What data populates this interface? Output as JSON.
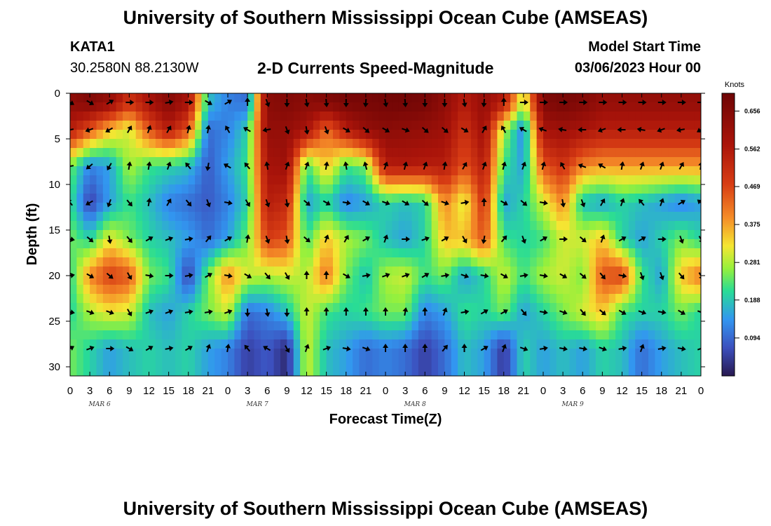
{
  "header": {
    "title": "University of Southern Mississippi Ocean Cube (AMSEAS)",
    "station_id": "KATA1",
    "coordinates": "30.2580N  88.2130W",
    "product": "2-D Currents Speed-Magnitude",
    "model_start_label": "Model Start Time",
    "model_start_value": "03/06/2023 Hour 00"
  },
  "footer": {
    "title": "University of Southern Mississippi Ocean Cube (AMSEAS)"
  },
  "colors": {
    "low": "#2a1e5c",
    "mid": "#3fe07a",
    "high": "#7a0b0b"
  },
  "chart_data": {
    "type": "heatmap",
    "title": "2-D Currents Speed-Magnitude",
    "xlabel": "Forecast Time(Z)",
    "ylabel": "Depth (ft)",
    "x_unit": "forecast hour",
    "x_range": [
      0,
      96
    ],
    "x_ticks": [
      "0",
      "3",
      "6",
      "9",
      "12",
      "15",
      "18",
      "21",
      "0",
      "3",
      "6",
      "9",
      "12",
      "15",
      "18",
      "21",
      "0",
      "3",
      "6",
      "9",
      "12",
      "15",
      "18",
      "21",
      "0",
      "3",
      "6",
      "9",
      "12",
      "15",
      "18",
      "21",
      "0"
    ],
    "date_labels": [
      "MAR 6",
      "MAR 7",
      "MAR 8",
      "MAR 9"
    ],
    "y_range": [
      0,
      31
    ],
    "y_ticks": [
      "0",
      "5",
      "10",
      "15",
      "20",
      "25",
      "30"
    ],
    "colorbar": {
      "title": "Knots",
      "range": [
        0,
        0.7
      ],
      "tick_values": [
        0.094,
        0.188,
        0.281,
        0.375,
        0.469,
        0.562,
        0.656
      ],
      "tick_labels": [
        "0.094",
        "0.188",
        "0.281",
        "0.375",
        "0.469",
        "0.562",
        "0.656"
      ]
    },
    "depth_levels_ft": [
      1,
      4,
      8,
      12,
      16,
      20,
      24,
      28
    ],
    "hours": [
      0,
      3,
      6,
      9,
      12,
      15,
      18,
      21,
      24,
      27,
      30,
      33,
      36,
      39,
      42,
      45,
      48,
      51,
      54,
      57,
      60,
      63,
      66,
      69,
      72,
      75,
      78,
      81,
      84,
      87,
      90,
      93,
      96
    ],
    "speed_knots": [
      [
        0.63,
        0.66,
        0.62,
        0.5,
        0.58,
        0.65,
        0.58,
        0.18,
        0.12,
        0.1,
        0.64,
        0.66,
        0.64,
        0.66,
        0.68,
        0.68,
        0.69,
        0.69,
        0.68,
        0.63,
        0.55,
        0.62,
        0.55,
        0.28,
        0.66,
        0.68,
        0.66,
        0.62,
        0.62,
        0.62,
        0.62,
        0.62,
        0.62
      ],
      [
        0.55,
        0.45,
        0.35,
        0.3,
        0.45,
        0.55,
        0.45,
        0.1,
        0.12,
        0.2,
        0.62,
        0.62,
        0.58,
        0.42,
        0.55,
        0.62,
        0.64,
        0.63,
        0.62,
        0.6,
        0.5,
        0.6,
        0.28,
        0.12,
        0.58,
        0.6,
        0.58,
        0.55,
        0.55,
        0.55,
        0.55,
        0.55,
        0.55
      ],
      [
        0.25,
        0.12,
        0.15,
        0.28,
        0.22,
        0.2,
        0.18,
        0.08,
        0.15,
        0.22,
        0.58,
        0.6,
        0.22,
        0.35,
        0.22,
        0.25,
        0.55,
        0.56,
        0.55,
        0.55,
        0.45,
        0.55,
        0.22,
        0.15,
        0.45,
        0.5,
        0.4,
        0.38,
        0.38,
        0.38,
        0.38,
        0.38,
        0.38
      ],
      [
        0.22,
        0.05,
        0.15,
        0.22,
        0.18,
        0.12,
        0.1,
        0.08,
        0.12,
        0.2,
        0.55,
        0.52,
        0.15,
        0.2,
        0.12,
        0.15,
        0.2,
        0.18,
        0.2,
        0.4,
        0.3,
        0.5,
        0.15,
        0.2,
        0.3,
        0.4,
        0.18,
        0.15,
        0.2,
        0.18,
        0.15,
        0.12,
        0.15
      ],
      [
        0.25,
        0.2,
        0.32,
        0.25,
        0.2,
        0.18,
        0.15,
        0.1,
        0.15,
        0.25,
        0.48,
        0.45,
        0.22,
        0.35,
        0.28,
        0.25,
        0.18,
        0.15,
        0.2,
        0.35,
        0.35,
        0.45,
        0.22,
        0.2,
        0.22,
        0.3,
        0.3,
        0.35,
        0.2,
        0.15,
        0.2,
        0.25,
        0.2
      ],
      [
        0.2,
        0.4,
        0.48,
        0.45,
        0.25,
        0.22,
        0.05,
        0.25,
        0.4,
        0.3,
        0.28,
        0.3,
        0.28,
        0.42,
        0.25,
        0.18,
        0.28,
        0.3,
        0.22,
        0.25,
        0.15,
        0.2,
        0.3,
        0.22,
        0.28,
        0.3,
        0.25,
        0.45,
        0.48,
        0.22,
        0.15,
        0.35,
        0.42
      ],
      [
        0.2,
        0.28,
        0.32,
        0.3,
        0.18,
        0.15,
        0.2,
        0.25,
        0.3,
        0.1,
        0.12,
        0.18,
        0.3,
        0.22,
        0.2,
        0.22,
        0.25,
        0.25,
        0.12,
        0.15,
        0.22,
        0.2,
        0.25,
        0.15,
        0.2,
        0.25,
        0.3,
        0.35,
        0.22,
        0.2,
        0.2,
        0.25,
        0.2
      ],
      [
        0.25,
        0.2,
        0.15,
        0.18,
        0.2,
        0.18,
        0.2,
        0.15,
        0.12,
        0.05,
        0.08,
        0.02,
        0.3,
        0.18,
        0.15,
        0.1,
        0.12,
        0.1,
        0.05,
        0.1,
        0.18,
        0.15,
        0.04,
        0.2,
        0.15,
        0.18,
        0.15,
        0.2,
        0.18,
        0.1,
        0.15,
        0.18,
        0.2
      ]
    ],
    "arrow_directions_deg": [
      [
        120,
        120,
        60,
        90,
        90,
        80,
        90,
        120,
        60,
        0,
        160,
        180,
        170,
        175,
        180,
        185,
        170,
        175,
        180,
        180,
        170,
        185,
        0,
        90,
        90,
        90,
        90,
        90,
        90,
        90,
        90,
        90,
        90
      ],
      [
        260,
        250,
        240,
        30,
        20,
        30,
        15,
        10,
        330,
        300,
        260,
        160,
        170,
        160,
        120,
        130,
        120,
        110,
        130,
        130,
        120,
        30,
        330,
        300,
        290,
        280,
        270,
        250,
        270,
        280,
        250,
        260,
        240
      ],
      [
        260,
        230,
        210,
        10,
        10,
        20,
        320,
        190,
        300,
        320,
        350,
        20,
        20,
        10,
        350,
        345,
        20,
        15,
        20,
        10,
        30,
        20,
        15,
        20,
        15,
        330,
        290,
        300,
        10,
        20,
        20,
        30,
        10
      ],
      [
        320,
        240,
        200,
        140,
        10,
        30,
        140,
        160,
        100,
        150,
        160,
        170,
        130,
        120,
        100,
        120,
        110,
        120,
        130,
        110,
        80,
        0,
        120,
        130,
        100,
        170,
        160,
        30,
        20,
        320,
        20,
        60,
        310
      ],
      [
        100,
        130,
        170,
        140,
        60,
        70,
        80,
        40,
        60,
        10,
        160,
        170,
        130,
        20,
        30,
        60,
        20,
        90,
        70,
        60,
        150,
        190,
        40,
        160,
        60,
        90,
        130,
        20,
        60,
        60,
        90,
        160,
        150
      ],
      [
        80,
        120,
        130,
        150,
        100,
        90,
        80,
        60,
        100,
        120,
        140,
        150,
        0,
        0,
        120,
        80,
        70,
        70,
        60,
        80,
        110,
        100,
        120,
        80,
        100,
        120,
        130,
        140,
        100,
        160,
        160,
        140,
        150
      ],
      [
        100,
        110,
        110,
        150,
        70,
        70,
        80,
        80,
        70,
        180,
        170,
        180,
        0,
        0,
        0,
        0,
        0,
        10,
        0,
        20,
        80,
        60,
        60,
        140,
        100,
        110,
        140,
        130,
        120,
        110,
        100,
        120,
        110
      ],
      [
        60,
        70,
        90,
        120,
        60,
        80,
        60,
        20,
        10,
        320,
        300,
        150,
        20,
        70,
        100,
        110,
        0,
        0,
        0,
        40,
        0,
        60,
        20,
        110,
        80,
        100,
        100,
        110,
        80,
        20,
        80,
        100,
        70
      ]
    ]
  }
}
